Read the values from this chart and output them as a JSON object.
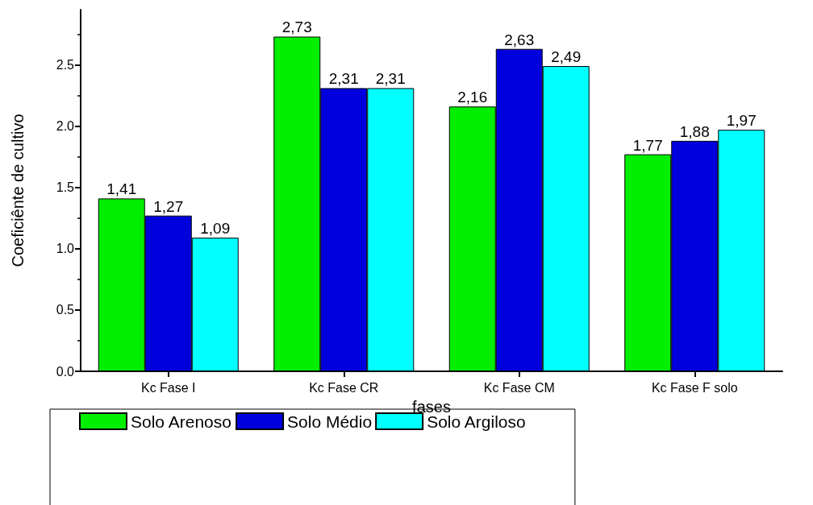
{
  "chart_data": {
    "type": "bar",
    "xlabel": "fases",
    "ylabel": "Coeficiênte de cultivo",
    "categories": [
      "Kc Fase I",
      "Kc Fase CR",
      "Kc Fase CM",
      "Kc Fase F solo"
    ],
    "series": [
      {
        "name": "Solo Arenoso",
        "color": "#00ee00",
        "values": [
          1.41,
          2.73,
          2.16,
          1.77
        ],
        "value_labels": [
          "1,41",
          "2,73",
          "2,16",
          "1,77"
        ]
      },
      {
        "name": "Solo Médio",
        "color": "#0000dd",
        "values": [
          1.27,
          2.31,
          2.63,
          1.88
        ],
        "value_labels": [
          "1,27",
          "2,31",
          "2,63",
          "1,88"
        ]
      },
      {
        "name": "Solo Argiloso",
        "color": "#00ffff",
        "values": [
          1.09,
          2.31,
          2.49,
          1.97
        ],
        "value_labels": [
          "1,09",
          "2,31",
          "2,49",
          "1,97"
        ]
      }
    ],
    "ylim": [
      0,
      2.95
    ],
    "yticks": [
      {
        "value": 0,
        "label": "0.0"
      },
      {
        "value": 0.5,
        "label": "0.5"
      },
      {
        "value": 1,
        "label": "1.0"
      },
      {
        "value": 1.5,
        "label": "1.5"
      },
      {
        "value": 2,
        "label": "2.0"
      },
      {
        "value": 2.5,
        "label": "2.5"
      }
    ],
    "grid": false,
    "legend": "bottom"
  }
}
